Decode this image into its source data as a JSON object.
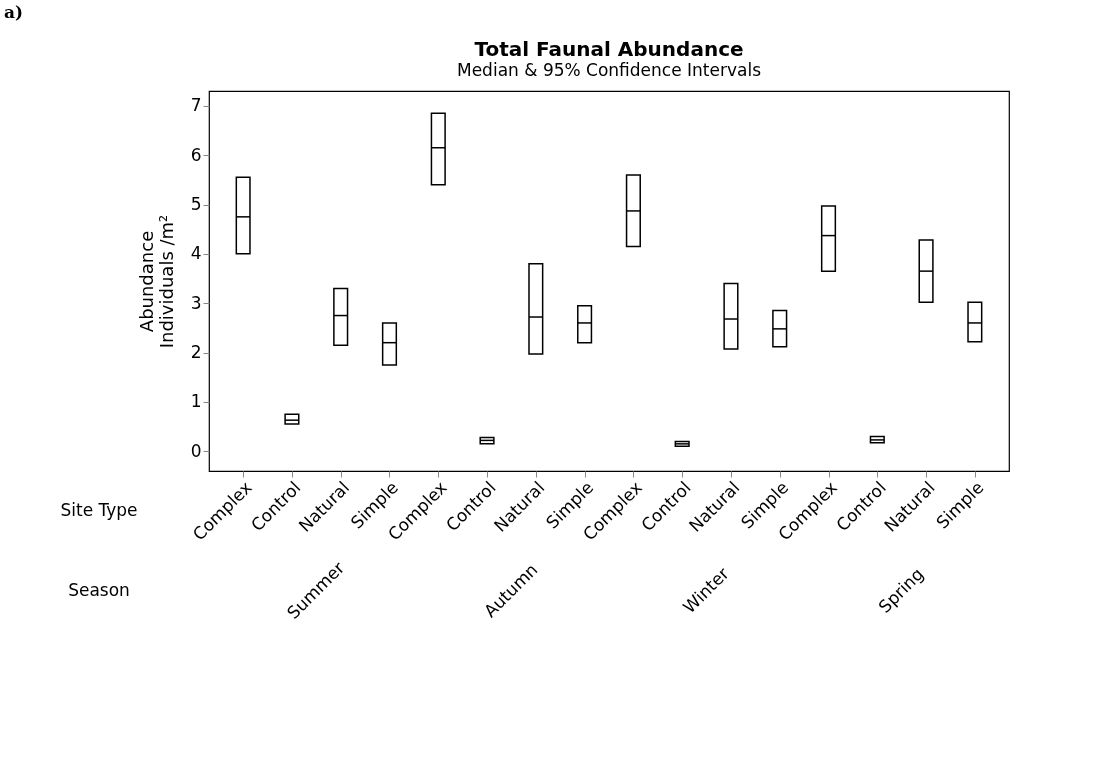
{
  "chart_data": {
    "type": "box",
    "title": "Total Faunal Abundance",
    "subtitle": "Median & 95% Confidence Intervals",
    "xlabel": "Site Type",
    "ylabel": "Abundance\nIndividuals /m²",
    "categories": [
      "Complex",
      "Control",
      "Natural",
      "Simple",
      "Complex",
      "Control",
      "Natural",
      "Simple",
      "Complex",
      "Control",
      "Natural",
      "Simple",
      "Complex",
      "Control",
      "Natural",
      "Simple"
    ],
    "boxes": [
      {
        "low": 4.0,
        "q1": 4.0,
        "median": 4.75,
        "q3": 5.55,
        "high": 5.55
      },
      {
        "low": 0.55,
        "q1": 0.55,
        "median": 0.63,
        "q3": 0.75,
        "high": 0.75
      },
      {
        "low": 2.15,
        "q1": 2.15,
        "median": 2.75,
        "q3": 3.3,
        "high": 3.3
      },
      {
        "low": 1.75,
        "q1": 1.75,
        "median": 2.2,
        "q3": 2.6,
        "high": 2.6
      },
      {
        "low": 5.4,
        "q1": 5.4,
        "median": 6.15,
        "q3": 6.85,
        "high": 6.85
      },
      {
        "low": 0.15,
        "q1": 0.15,
        "median": 0.22,
        "q3": 0.28,
        "high": 0.28
      },
      {
        "low": 1.97,
        "q1": 1.97,
        "median": 2.72,
        "q3": 3.8,
        "high": 3.8
      },
      {
        "low": 2.2,
        "q1": 2.2,
        "median": 2.6,
        "q3": 2.95,
        "high": 2.95
      },
      {
        "low": 4.15,
        "q1": 4.15,
        "median": 4.87,
        "q3": 5.6,
        "high": 5.6
      },
      {
        "low": 0.1,
        "q1": 0.1,
        "median": 0.15,
        "q3": 0.2,
        "high": 0.2
      },
      {
        "low": 2.07,
        "q1": 2.07,
        "median": 2.68,
        "q3": 3.4,
        "high": 3.4
      },
      {
        "low": 2.12,
        "q1": 2.12,
        "median": 2.48,
        "q3": 2.85,
        "high": 2.85
      },
      {
        "low": 3.65,
        "q1": 3.65,
        "median": 4.37,
        "q3": 4.97,
        "high": 4.97
      },
      {
        "low": 0.17,
        "q1": 0.17,
        "median": 0.23,
        "q3": 0.3,
        "high": 0.3
      },
      {
        "low": 3.02,
        "q1": 3.02,
        "median": 3.65,
        "q3": 4.28,
        "high": 4.28
      },
      {
        "low": 2.22,
        "q1": 2.22,
        "median": 2.6,
        "q3": 3.02,
        "high": 3.02
      }
    ],
    "annotations": [
      "a)",
      "Season",
      "Summer",
      "Autumn",
      "Winter",
      "Spring"
    ],
    "ylim": [
      -0.4,
      7.3
    ],
    "yticks": [
      0,
      1,
      2,
      3,
      4,
      5,
      6,
      7
    ]
  }
}
